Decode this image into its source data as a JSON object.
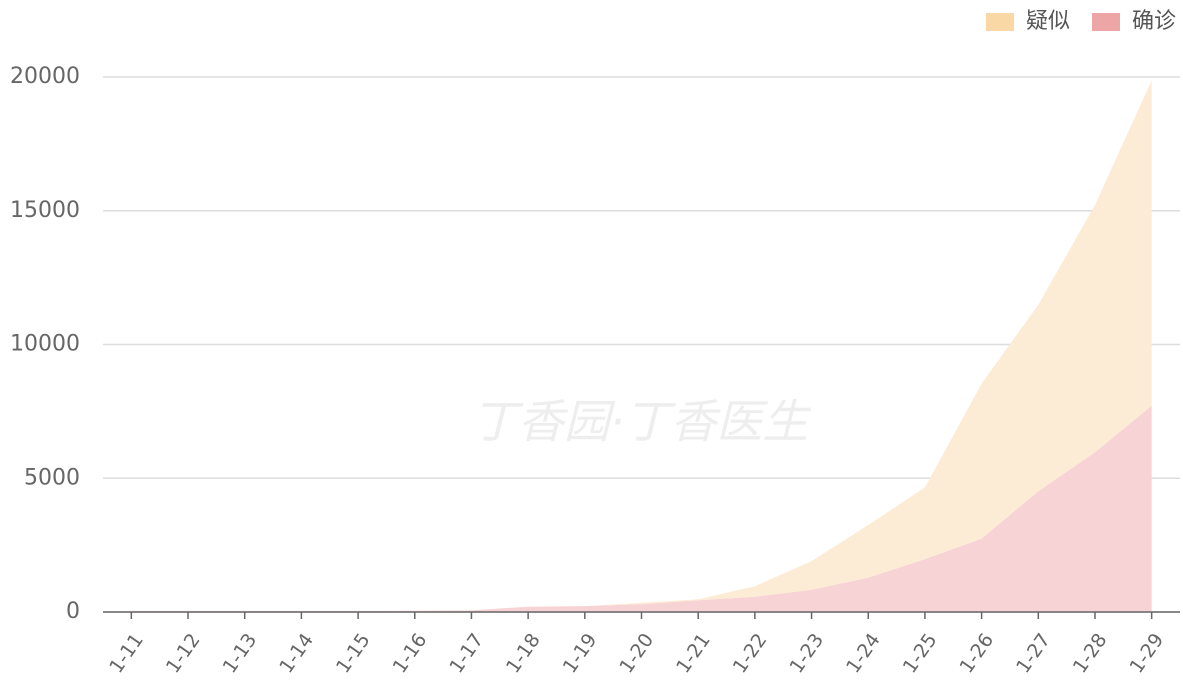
{
  "chart_data": {
    "type": "stacked_area",
    "watermark": "丁香园·丁香医生",
    "categories": [
      "1-11",
      "1-12",
      "1-13",
      "1-14",
      "1-15",
      "1-16",
      "1-17",
      "1-18",
      "1-19",
      "1-20",
      "1-21",
      "1-22",
      "1-23",
      "1-24",
      "1-25",
      "1-26",
      "1-27",
      "1-28",
      "1-29"
    ],
    "series": [
      {
        "name": "确诊",
        "color": "#f7d3d5",
        "legend_color": "#eea5a6",
        "values": [
          41,
          41,
          41,
          41,
          41,
          45,
          62,
          198,
          218,
          291,
          440,
          571,
          830,
          1287,
          1975,
          2744,
          4515,
          5974,
          7711
        ]
      },
      {
        "name": "疑似",
        "color": "#fdecd5",
        "legend_color": "#f9d8a6",
        "values": [
          0,
          0,
          0,
          0,
          0,
          0,
          0,
          0,
          0,
          54,
          37,
          393,
          1072,
          1965,
          2684,
          5794,
          6973,
          9239,
          12167
        ]
      }
    ],
    "ylim": [
      0,
      20000
    ],
    "yticks": [
      0,
      5000,
      10000,
      15000,
      20000
    ],
    "grid": true,
    "legend": "top-right"
  }
}
